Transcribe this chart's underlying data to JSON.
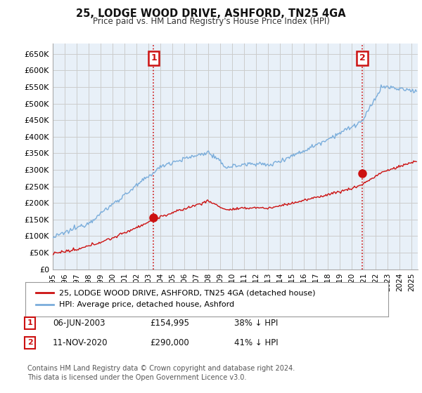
{
  "title": "25, LODGE WOOD DRIVE, ASHFORD, TN25 4GA",
  "subtitle": "Price paid vs. HM Land Registry's House Price Index (HPI)",
  "ylabel_ticks": [
    "£0",
    "£50K",
    "£100K",
    "£150K",
    "£200K",
    "£250K",
    "£300K",
    "£350K",
    "£400K",
    "£450K",
    "£500K",
    "£550K",
    "£600K",
    "£650K"
  ],
  "ylim": [
    0,
    682000
  ],
  "xlim_start": 1995.0,
  "xlim_end": 2025.5,
  "hpi_color": "#7aaddb",
  "price_color": "#cc1111",
  "sale_1_x": 2003.43,
  "sale_1_y": 154995,
  "sale_2_x": 2020.87,
  "sale_2_y": 290000,
  "legend_label_price": "25, LODGE WOOD DRIVE, ASHFORD, TN25 4GA (detached house)",
  "legend_label_hpi": "HPI: Average price, detached house, Ashford",
  "footer": "Contains HM Land Registry data © Crown copyright and database right 2024.\nThis data is licensed under the Open Government Licence v3.0.",
  "background_color": "#ffffff",
  "grid_color": "#cccccc",
  "plot_bg_color": "#e8f0f8"
}
